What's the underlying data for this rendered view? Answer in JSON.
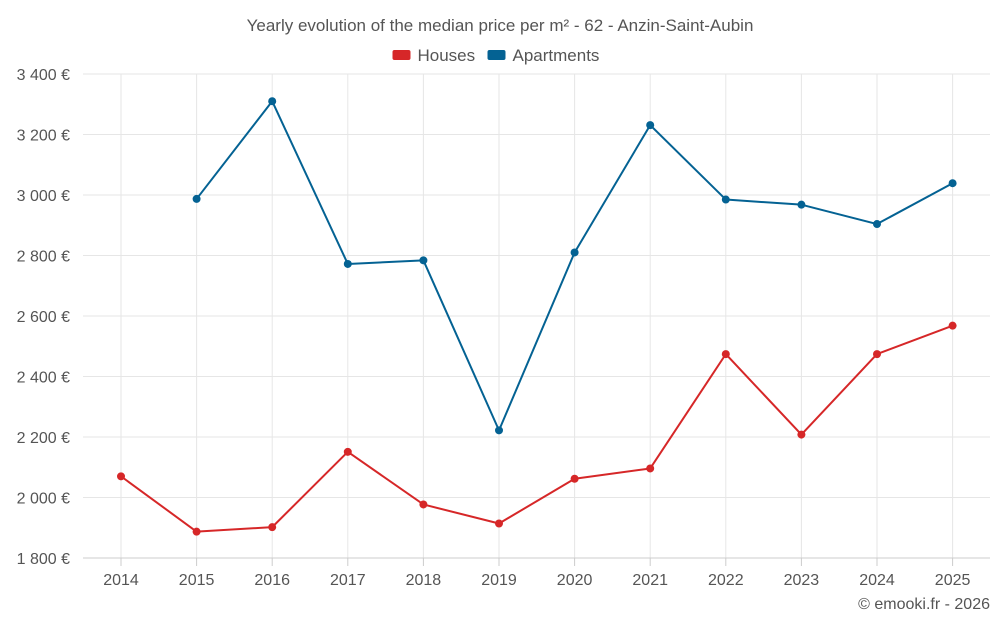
{
  "chart_data": {
    "type": "line",
    "title": "Yearly evolution of the median price per m² - 62 - Anzin-Saint-Aubin",
    "categories": [
      "2014",
      "2015",
      "2016",
      "2017",
      "2018",
      "2019",
      "2020",
      "2021",
      "2022",
      "2023",
      "2024",
      "2025"
    ],
    "series": [
      {
        "name": "Houses",
        "color": "#d62728",
        "values": [
          2070,
          1887,
          1902,
          2151,
          1977,
          1914,
          2062,
          2096,
          2474,
          2208,
          2474,
          2568
        ]
      },
      {
        "name": "Apartments",
        "color": "#046293",
        "values": [
          null,
          2987,
          3310,
          2772,
          2784,
          2222,
          2810,
          3231,
          2985,
          2968,
          2904,
          3039
        ]
      }
    ],
    "ylim": [
      1800,
      3400
    ],
    "yticks": [
      1800,
      2000,
      2200,
      2400,
      2600,
      2800,
      3000,
      3200,
      3400
    ],
    "ytick_labels": [
      "1 800 €",
      "2 000 €",
      "2 200 €",
      "2 400 €",
      "2 600 €",
      "2 800 €",
      "3 000 €",
      "3 200 €",
      "3 400 €"
    ],
    "xlabel": "",
    "ylabel": "",
    "grid": true,
    "legend_position": "top-center"
  },
  "credit": "© emooki.fr - 2026"
}
